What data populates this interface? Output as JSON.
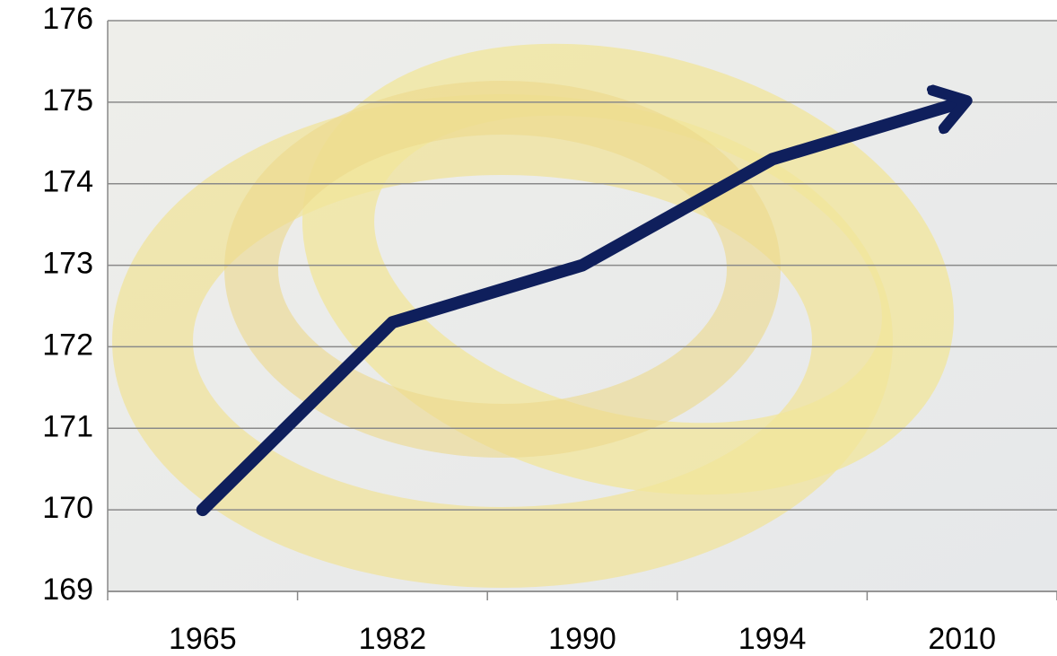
{
  "chart_data": {
    "type": "line",
    "categories": [
      "1965",
      "1982",
      "1990",
      "1994",
      "2010"
    ],
    "values": [
      170,
      172.3,
      173,
      174.3,
      175
    ],
    "color": "#0f1f5c",
    "ylim": [
      169,
      176
    ],
    "yticks": [
      169,
      170,
      171,
      172,
      173,
      174,
      175,
      176
    ],
    "grid": true
  }
}
